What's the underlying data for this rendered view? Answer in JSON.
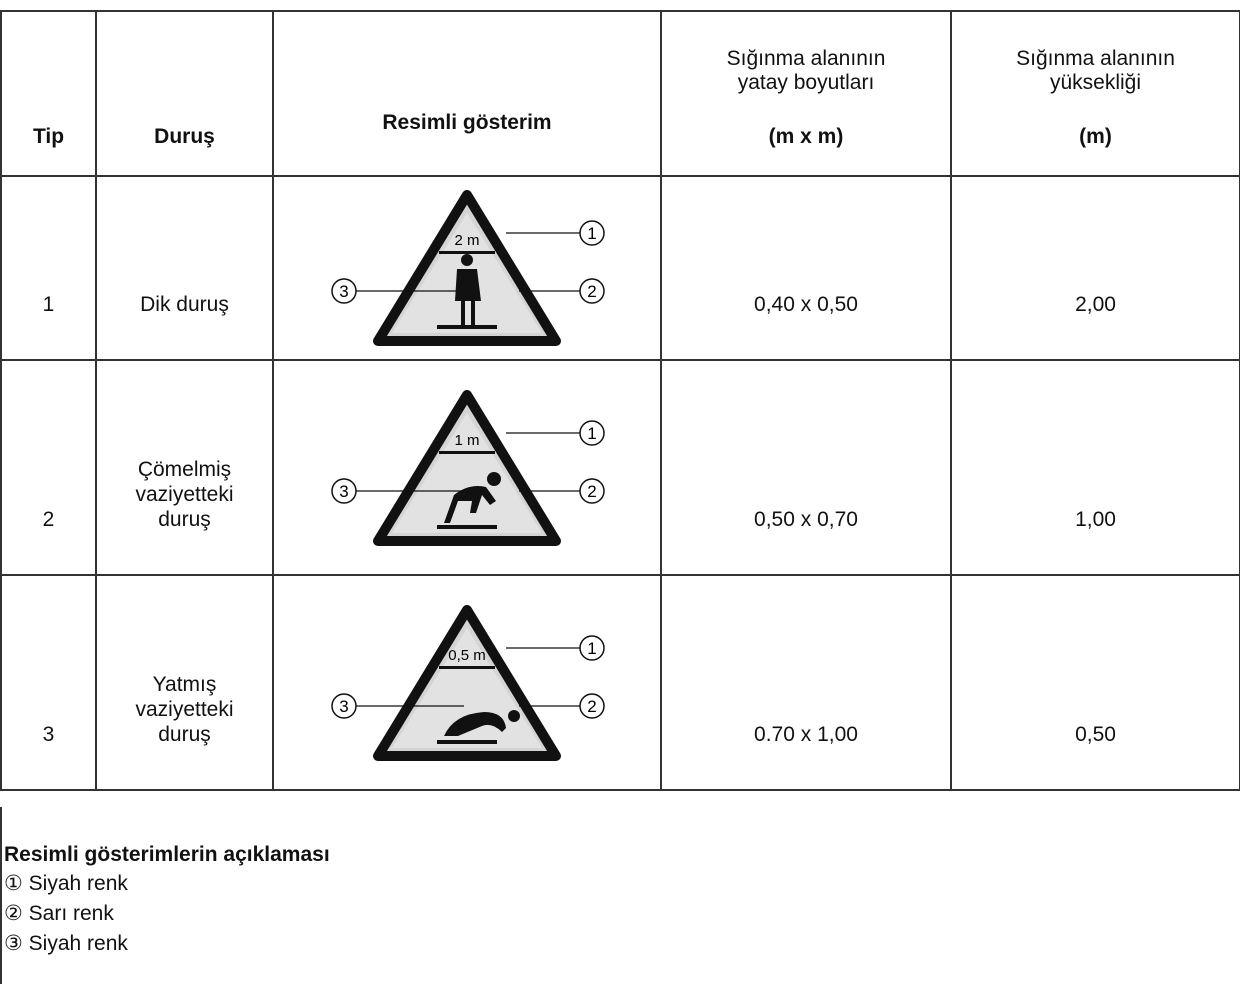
{
  "table": {
    "header": {
      "tip": "Tip",
      "durus": "Duruş",
      "resim": "Resimli gösterim",
      "boyut": {
        "label": "Sığınma alanının yatay boyutları",
        "unit": "(m x m)"
      },
      "yukseklik": {
        "label": "Sığınma alanının yüksekliği",
        "unit": "(m)"
      }
    },
    "rows": [
      {
        "tip": "1",
        "durus": [
          "Dik duruş"
        ],
        "sign_height": "2 m",
        "callouts": [
          "1",
          "2",
          "3"
        ],
        "boyut": "0,40 x 0,50",
        "yukseklik": "2,00"
      },
      {
        "tip": "2",
        "durus": [
          "Çömelmiş",
          "vaziyetteki",
          "duruş"
        ],
        "sign_height": "1 m",
        "callouts": [
          "1",
          "2",
          "3"
        ],
        "boyut": "0,50 x 0,70",
        "yukseklik": "1,00"
      },
      {
        "tip": "3",
        "durus": [
          "Yatmış",
          "vaziyetteki",
          "duruş"
        ],
        "sign_height": "0,5 m",
        "callouts": [
          "1",
          "2",
          "3"
        ],
        "boyut": "0.70 x 1,00",
        "yukseklik": "0,50"
      }
    ]
  },
  "legend": {
    "title": "Resimli gösterimlerin açıklaması",
    "items": [
      "① Siyah renk",
      "② Sarı renk",
      "③ Siyah renk"
    ]
  }
}
